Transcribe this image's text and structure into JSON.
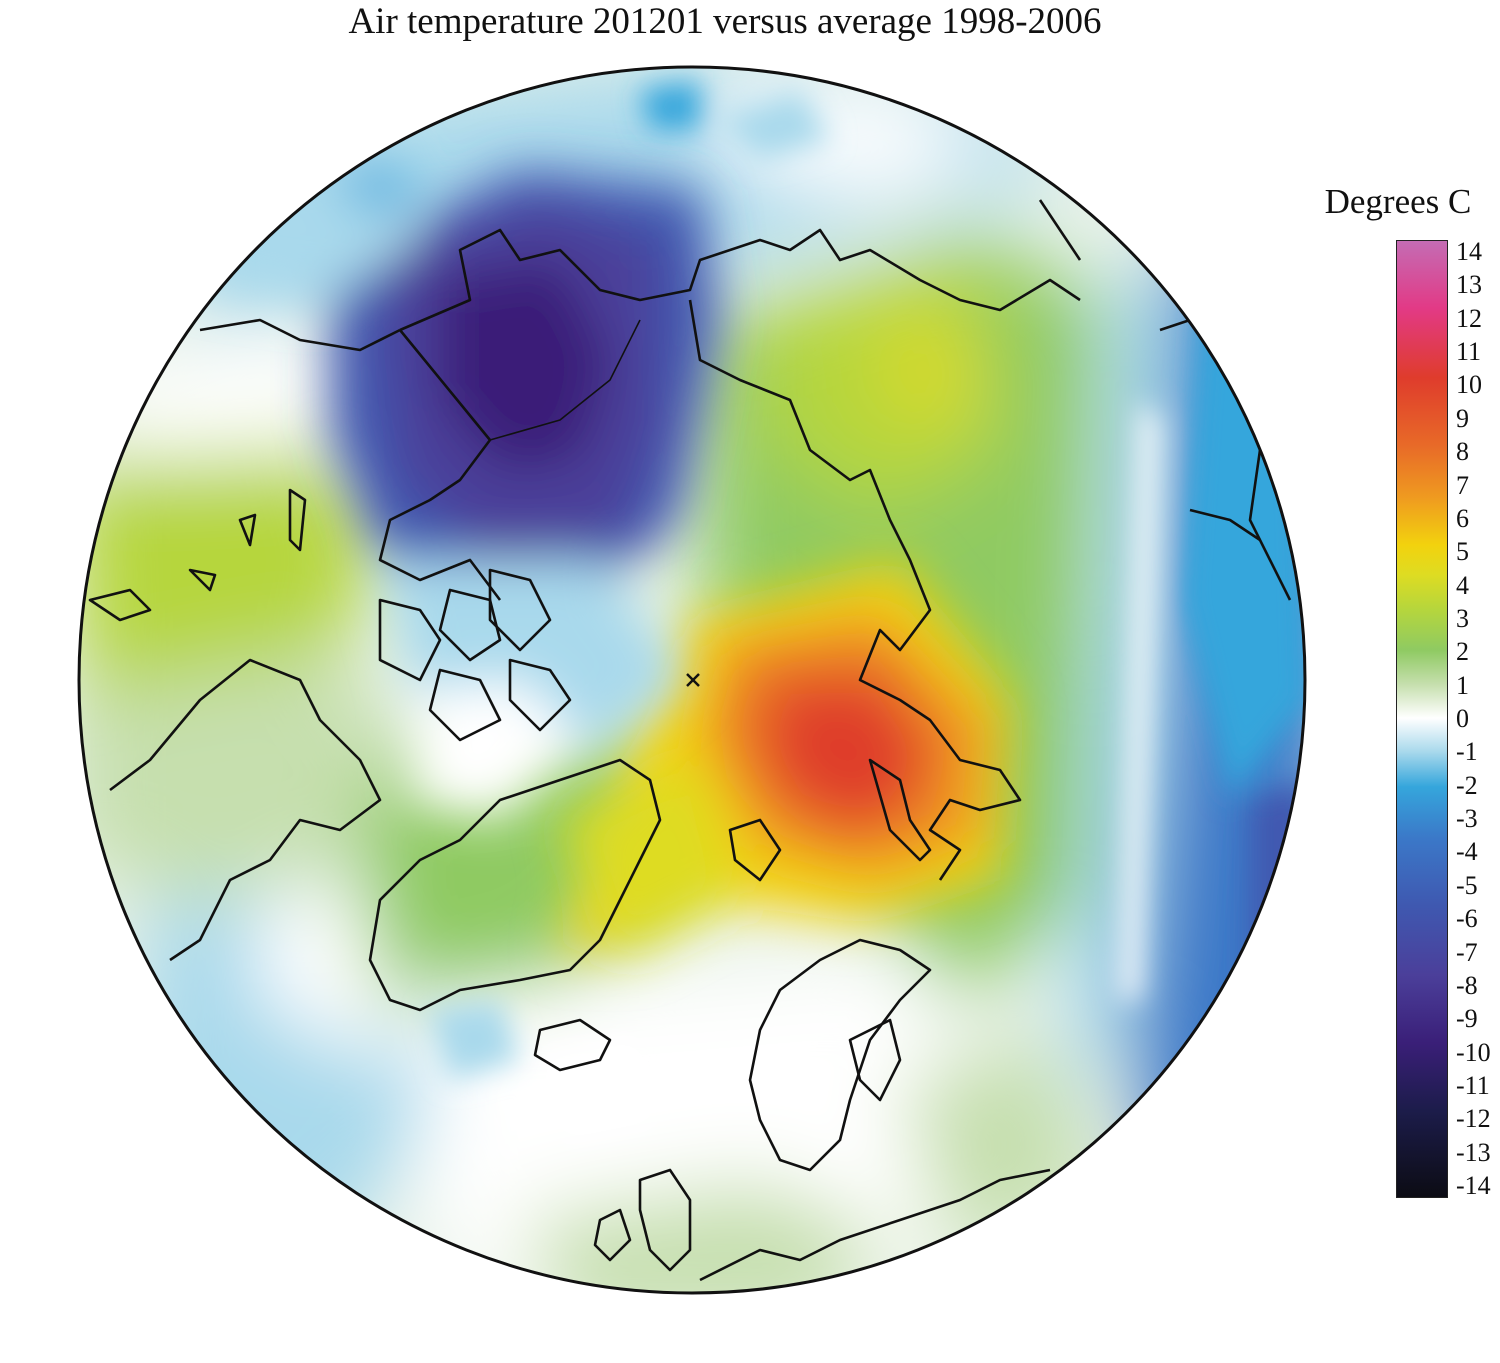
{
  "title": "Air temperature 201201 versus average 1998-2006",
  "legend": {
    "title": "Degrees C",
    "ticks": [
      "14",
      "13",
      "12",
      "11",
      "10",
      "9",
      "8",
      "7",
      "6",
      "5",
      "4",
      "3",
      "2",
      "1",
      "0",
      "-1",
      "-2",
      "-3",
      "-4",
      "-5",
      "-6",
      "-7",
      "-8",
      "-9",
      "-10",
      "-11",
      "-12",
      "-13",
      "-14"
    ]
  },
  "map": {
    "projection": "polar stereographic centered on North Pole",
    "pole_marker": "x",
    "colors": {
      "neg14": "#0c0c14",
      "neg12": "#1c1c4a",
      "neg10": "#3a1f78",
      "neg8": "#4b3f9a",
      "neg6": "#3f58b0",
      "neg4": "#3b78c8",
      "neg2": "#35a6dc",
      "neg1": "#a9d9ec",
      "zero": "#ffffff",
      "pos1": "#c6dfae",
      "pos2": "#8fca62",
      "pos3": "#b6d63c",
      "pos4": "#dedc22",
      "pos5": "#f2d20e",
      "pos6": "#ef9a20",
      "pos8": "#e86a28",
      "pos10": "#df3c2c",
      "pos12": "#e23a86",
      "pos14": "#c46cb4"
    }
  }
}
